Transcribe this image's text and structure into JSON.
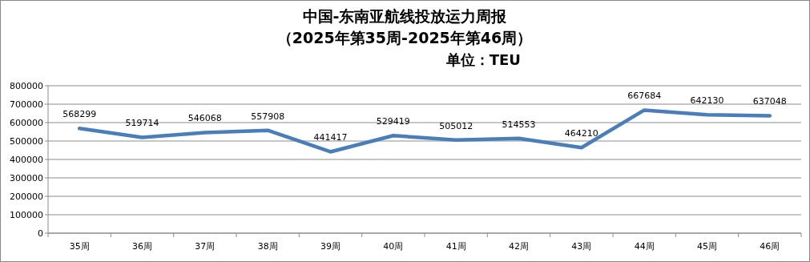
{
  "chart_data": {
    "type": "line",
    "title": "中国-东南亚航线投放运力周报",
    "subtitle": "（2025年第35周-2025年第46周）",
    "annotations": [
      "单位：TEU"
    ],
    "categories": [
      "35周",
      "36周",
      "37周",
      "38周",
      "39周",
      "40周",
      "41周",
      "42周",
      "43周",
      "44周",
      "45周",
      "46周"
    ],
    "series": [
      {
        "color": "#4a7ebb",
        "values": [
          568299,
          519714,
          546068,
          557908,
          441417,
          529419,
          505012,
          514553,
          464210,
          667684,
          642130,
          637048
        ]
      }
    ],
    "ylim": [
      0,
      800000
    ],
    "yticks": [
      0,
      100000,
      200000,
      300000,
      400000,
      500000,
      600000,
      700000,
      800000
    ],
    "grid": "y",
    "marker": "none",
    "line_style": "solid",
    "data_labels": true
  }
}
